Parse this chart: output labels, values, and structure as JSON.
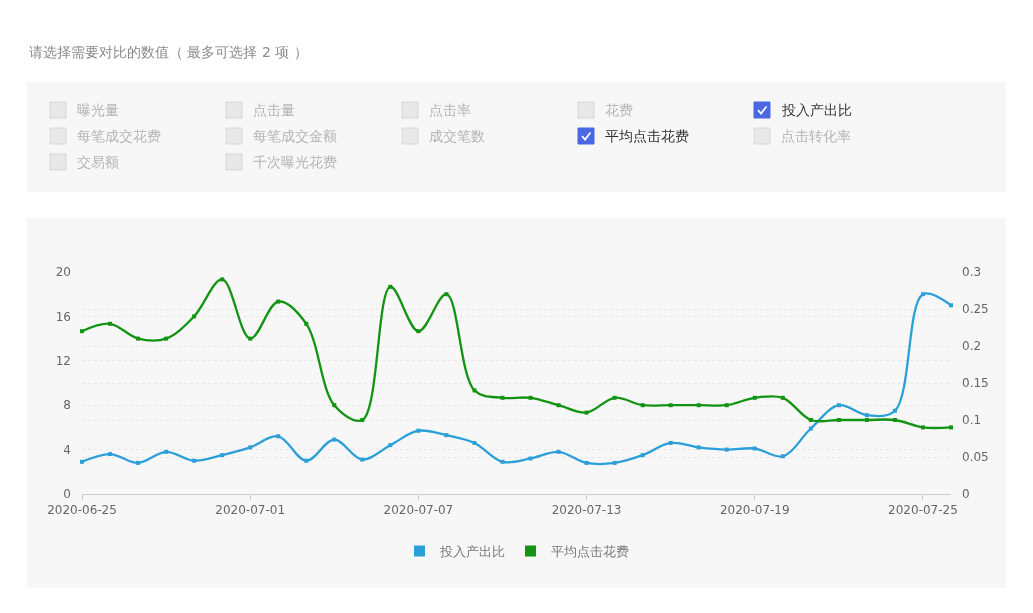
{
  "chart_data": [
    {
      "type": "other",
      "title": "请选择需要对比的数值（ 最多可选择 2 项 ）",
      "categories": [
        "曝光量",
        "点击量",
        "点击率",
        "花费",
        "投入产出比",
        "每笔成交花费",
        "每笔成交金额",
        "成交笔数",
        "平均点击花费",
        "点击转化率",
        "交易额",
        "千次曝光花费"
      ],
      "colors": [
        "#e8e8e8",
        "#e8e8e8",
        "#e8e8e8",
        "#e8e8e8",
        "#4b67e3",
        "#e8e8e8",
        "#e8e8e8",
        "#e8e8e8",
        "#4b67e3",
        "#e8e8e8",
        "#e8e8e8",
        "#e8e8e8"
      ]
    },
    {
      "type": "line",
      "x": [
        "2020-06-25",
        "2020-06-26",
        "2020-06-27",
        "2020-06-28",
        "2020-06-29",
        "2020-06-30",
        "2020-07-01",
        "2020-07-02",
        "2020-07-03",
        "2020-07-04",
        "2020-07-05",
        "2020-07-06",
        "2020-07-07",
        "2020-07-08",
        "2020-07-09",
        "2020-07-10",
        "2020-07-11",
        "2020-07-12",
        "2020-07-13",
        "2020-07-14",
        "2020-07-15",
        "2020-07-16",
        "2020-07-17",
        "2020-07-18",
        "2020-07-19",
        "2020-07-20",
        "2020-07-21",
        "2020-07-22",
        "2020-07-23",
        "2020-07-24",
        "2020-07-25",
        "2020-07-26"
      ],
      "series": [
        {
          "name": "投入产出比",
          "color": "#2b9fd8",
          "values": [
            2.9,
            3.6,
            2.8,
            3.8,
            3.0,
            3.5,
            4.2,
            5.2,
            3.0,
            4.9,
            3.1,
            4.4,
            5.7,
            5.3,
            4.6,
            2.9,
            3.2,
            3.8,
            2.8,
            2.8,
            3.5,
            4.6,
            4.2,
            4.0,
            4.1,
            3.4,
            5.9,
            8.0,
            7.1,
            7.5,
            18.0,
            17.0
          ]
        },
        {
          "name": "平均点击花费",
          "color": "#129412",
          "axis": "y2",
          "values": [
            0.22,
            0.23,
            0.21,
            0.21,
            0.24,
            0.29,
            0.21,
            0.26,
            0.23,
            0.12,
            0.1,
            0.28,
            0.22,
            0.27,
            0.14,
            0.13,
            0.13,
            0.12,
            0.11,
            0.13,
            0.12,
            0.12,
            0.12,
            0.12,
            0.13,
            0.13,
            0.1,
            0.1,
            0.1,
            0.1,
            0.09,
            0.09
          ]
        }
      ],
      "xlim": [
        "2020-06-25",
        "2020-07-26"
      ],
      "xticks": [
        "2020-06-25",
        "2020-07-01",
        "2020-07-07",
        "2020-07-13",
        "2020-07-19",
        "2020-07-25"
      ],
      "ylim": [
        0,
        20
      ],
      "yticks": [
        0,
        4,
        8,
        12,
        16,
        20
      ],
      "y2lim": [
        0,
        0.3
      ],
      "y2ticks": [
        0,
        0.05,
        0.1,
        0.15,
        0.2,
        0.25,
        0.3
      ],
      "grid": "y",
      "legend": "bottom",
      "marker": "square",
      "line_style": "solid"
    }
  ]
}
